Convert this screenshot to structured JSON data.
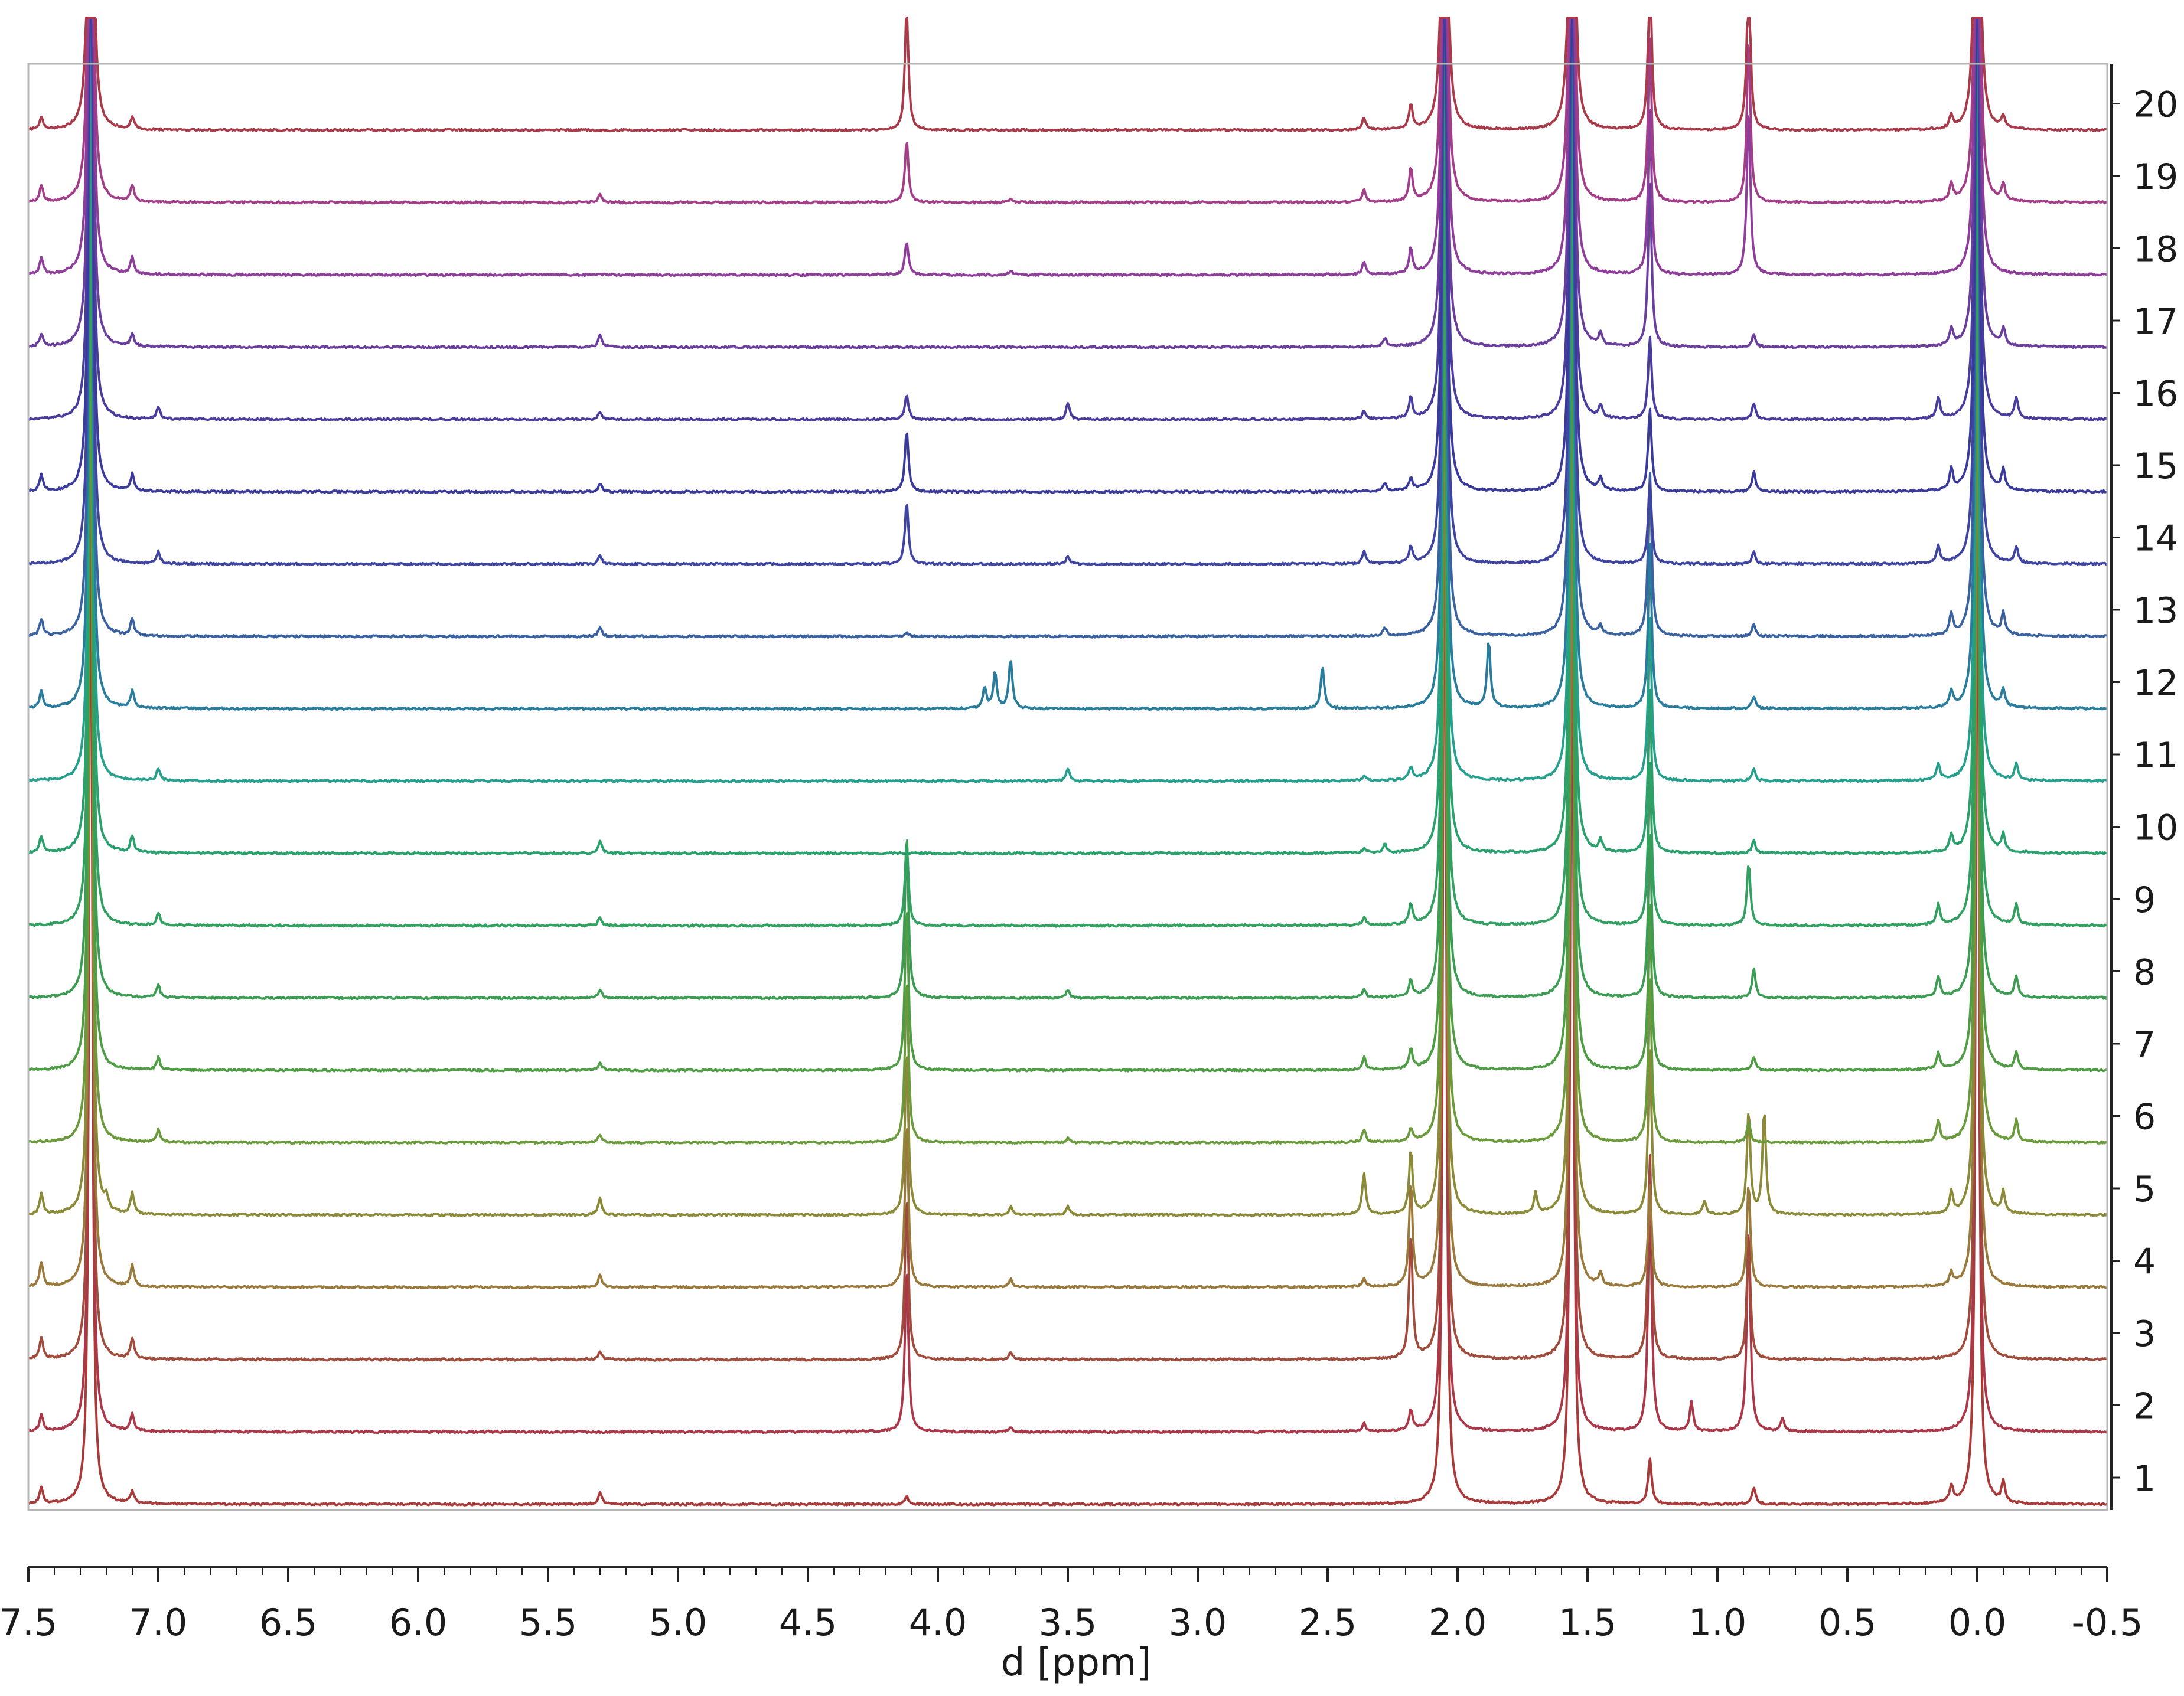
{
  "chart_data": {
    "type": "line",
    "xlabel": "d [ppm]",
    "ylabel": "",
    "title": "",
    "xlim": [
      7.5,
      -0.5
    ],
    "x_reversed": true,
    "x_ticks": [
      7.5,
      7.0,
      6.5,
      6.0,
      5.5,
      5.0,
      4.5,
      4.0,
      3.5,
      3.0,
      2.5,
      2.0,
      1.5,
      1.0,
      0.5,
      0.0,
      -0.5
    ],
    "x_tick_labels": [
      "7.5",
      "7.0",
      "6.5",
      "6.0",
      "5.5",
      "5.0",
      "4.5",
      "4.0",
      "3.5",
      "3.0",
      "2.5",
      "2.0",
      "1.5",
      "1.0",
      "0.5",
      "0.0",
      "-0.5"
    ],
    "right_tick_labels": [
      "1",
      "2",
      "3",
      "4",
      "5",
      "6",
      "7",
      "8",
      "9",
      "10",
      "11",
      "12",
      "13",
      "14",
      "15",
      "16",
      "17",
      "18",
      "19",
      "20"
    ],
    "grid": false,
    "legend": "none",
    "common_peaks": [
      {
        "ppm": 7.26,
        "height": 30
      },
      {
        "ppm": 1.56,
        "height": 30
      },
      {
        "ppm": 0.0,
        "height": 30
      },
      {
        "ppm": 2.05,
        "height": 30
      }
    ],
    "series": [
      {
        "label": "1",
        "color": "#a83a3a",
        "peaks": [
          {
            "ppm": 7.45,
            "h": 0.4
          },
          {
            "ppm": 7.1,
            "h": 0.3
          },
          {
            "ppm": 5.3,
            "h": 0.3
          },
          {
            "ppm": 4.12,
            "h": 0.2
          },
          {
            "ppm": 2.05,
            "h": 0.9
          },
          {
            "ppm": 1.26,
            "h": 1.1
          },
          {
            "ppm": 0.86,
            "h": 0.4
          },
          {
            "ppm": 0.1,
            "h": 0.4
          },
          {
            "ppm": -0.1,
            "h": 0.5
          }
        ]
      },
      {
        "label": "2",
        "color": "#aa3848",
        "peaks": [
          {
            "ppm": 7.45,
            "h": 0.4
          },
          {
            "ppm": 7.1,
            "h": 0.4
          },
          {
            "ppm": 4.12,
            "h": 4.0
          },
          {
            "ppm": 3.72,
            "h": 0.1
          },
          {
            "ppm": 2.36,
            "h": 0.2
          },
          {
            "ppm": 2.18,
            "h": 0.5
          },
          {
            "ppm": 1.26,
            "h": 6.0
          },
          {
            "ppm": 1.1,
            "h": 0.7
          },
          {
            "ppm": 0.88,
            "h": 5.0
          },
          {
            "ppm": 0.75,
            "h": 0.3
          }
        ]
      },
      {
        "label": "3",
        "color": "#a04c3c",
        "peaks": [
          {
            "ppm": 7.45,
            "h": 0.5
          },
          {
            "ppm": 7.1,
            "h": 0.5
          },
          {
            "ppm": 5.3,
            "h": 0.2
          },
          {
            "ppm": 4.12,
            "h": 4.0
          },
          {
            "ppm": 3.72,
            "h": 0.2
          },
          {
            "ppm": 2.18,
            "h": 3.0
          },
          {
            "ppm": 1.26,
            "h": 5.0
          },
          {
            "ppm": 0.88,
            "h": 3.0
          }
        ]
      },
      {
        "label": "4",
        "color": "#9a7a3c",
        "peaks": [
          {
            "ppm": 7.45,
            "h": 0.6
          },
          {
            "ppm": 7.1,
            "h": 0.5
          },
          {
            "ppm": 5.3,
            "h": 0.3
          },
          {
            "ppm": 4.12,
            "h": 4.0
          },
          {
            "ppm": 3.72,
            "h": 0.2
          },
          {
            "ppm": 2.36,
            "h": 0.2
          },
          {
            "ppm": 2.18,
            "h": 2.5
          },
          {
            "ppm": 1.45,
            "h": 0.3
          },
          {
            "ppm": 1.26,
            "h": 2.5
          },
          {
            "ppm": 0.88,
            "h": 2.5
          },
          {
            "ppm": 0.1,
            "h": 0.3
          }
        ]
      },
      {
        "label": "5",
        "color": "#8a8a38",
        "peaks": [
          {
            "ppm": 7.45,
            "h": 0.5
          },
          {
            "ppm": 7.2,
            "h": 0.3
          },
          {
            "ppm": 7.1,
            "h": 0.5
          },
          {
            "ppm": 5.3,
            "h": 0.4
          },
          {
            "ppm": 4.12,
            "h": 4.0
          },
          {
            "ppm": 3.72,
            "h": 0.2
          },
          {
            "ppm": 3.5,
            "h": 0.2
          },
          {
            "ppm": 2.36,
            "h": 1.0
          },
          {
            "ppm": 2.18,
            "h": 1.5
          },
          {
            "ppm": 1.7,
            "h": 0.5
          },
          {
            "ppm": 1.26,
            "h": 4.0
          },
          {
            "ppm": 1.05,
            "h": 0.3
          },
          {
            "ppm": 0.88,
            "h": 2.5
          },
          {
            "ppm": 0.82,
            "h": 2.5
          },
          {
            "ppm": 0.1,
            "h": 0.5
          },
          {
            "ppm": -0.1,
            "h": 0.5
          }
        ]
      },
      {
        "label": "6",
        "color": "#6a9a3c",
        "peaks": [
          {
            "ppm": 7.0,
            "h": 0.3
          },
          {
            "ppm": 5.3,
            "h": 0.2
          },
          {
            "ppm": 4.12,
            "h": 4.0
          },
          {
            "ppm": 3.5,
            "h": 0.1
          },
          {
            "ppm": 2.36,
            "h": 0.3
          },
          {
            "ppm": 2.18,
            "h": 0.3
          },
          {
            "ppm": 1.26,
            "h": 4.0
          },
          {
            "ppm": 0.88,
            "h": 0.5
          },
          {
            "ppm": 0.15,
            "h": 0.5
          },
          {
            "ppm": -0.15,
            "h": 0.5
          }
        ]
      },
      {
        "label": "7",
        "color": "#4e9c44",
        "peaks": [
          {
            "ppm": 7.0,
            "h": 0.3
          },
          {
            "ppm": 5.3,
            "h": 0.2
          },
          {
            "ppm": 4.12,
            "h": 4.0
          },
          {
            "ppm": 2.36,
            "h": 0.3
          },
          {
            "ppm": 2.18,
            "h": 0.5
          },
          {
            "ppm": 1.26,
            "h": 4.0
          },
          {
            "ppm": 0.86,
            "h": 0.3
          },
          {
            "ppm": 0.15,
            "h": 0.4
          },
          {
            "ppm": -0.15,
            "h": 0.4
          }
        ]
      },
      {
        "label": "8",
        "color": "#3c9c54",
        "peaks": [
          {
            "ppm": 7.0,
            "h": 0.3
          },
          {
            "ppm": 5.3,
            "h": 0.2
          },
          {
            "ppm": 4.12,
            "h": 4.0
          },
          {
            "ppm": 3.5,
            "h": 0.2
          },
          {
            "ppm": 2.36,
            "h": 0.2
          },
          {
            "ppm": 2.18,
            "h": 0.4
          },
          {
            "ppm": 1.26,
            "h": 4.0
          },
          {
            "ppm": 0.86,
            "h": 0.7
          },
          {
            "ppm": 0.15,
            "h": 0.5
          },
          {
            "ppm": -0.15,
            "h": 0.5
          }
        ]
      },
      {
        "label": "9",
        "color": "#32a060",
        "peaks": [
          {
            "ppm": 7.0,
            "h": 0.3
          },
          {
            "ppm": 5.3,
            "h": 0.2
          },
          {
            "ppm": 4.12,
            "h": 2.0
          },
          {
            "ppm": 2.36,
            "h": 0.2
          },
          {
            "ppm": 2.18,
            "h": 0.5
          },
          {
            "ppm": 1.26,
            "h": 4.0
          },
          {
            "ppm": 0.88,
            "h": 1.5
          },
          {
            "ppm": 0.15,
            "h": 0.5
          },
          {
            "ppm": -0.15,
            "h": 0.5
          }
        ]
      },
      {
        "label": "10",
        "color": "#2aa06c",
        "peaks": [
          {
            "ppm": 7.45,
            "h": 0.4
          },
          {
            "ppm": 7.1,
            "h": 0.4
          },
          {
            "ppm": 5.3,
            "h": 0.3
          },
          {
            "ppm": 2.36,
            "h": 0.1
          },
          {
            "ppm": 2.28,
            "h": 0.2
          },
          {
            "ppm": 1.45,
            "h": 0.3
          },
          {
            "ppm": 1.26,
            "h": 4.0
          },
          {
            "ppm": 0.86,
            "h": 0.3
          },
          {
            "ppm": 0.1,
            "h": 0.4
          },
          {
            "ppm": -0.1,
            "h": 0.4
          }
        ]
      },
      {
        "label": "11",
        "color": "#26a08c",
        "peaks": [
          {
            "ppm": 7.0,
            "h": 0.3
          },
          {
            "ppm": 3.5,
            "h": 0.3
          },
          {
            "ppm": 2.36,
            "h": 0.1
          },
          {
            "ppm": 2.18,
            "h": 0.3
          },
          {
            "ppm": 1.26,
            "h": 4.0
          },
          {
            "ppm": 0.86,
            "h": 0.3
          },
          {
            "ppm": 0.15,
            "h": 0.4
          },
          {
            "ppm": -0.15,
            "h": 0.4
          }
        ]
      },
      {
        "label": "12",
        "color": "#2a7c9c",
        "peaks": [
          {
            "ppm": 7.45,
            "h": 0.4
          },
          {
            "ppm": 7.1,
            "h": 0.4
          },
          {
            "ppm": 3.82,
            "h": 0.5
          },
          {
            "ppm": 3.78,
            "h": 0.9
          },
          {
            "ppm": 3.72,
            "h": 1.2
          },
          {
            "ppm": 2.52,
            "h": 1.0
          },
          {
            "ppm": 1.88,
            "h": 1.6
          },
          {
            "ppm": 1.26,
            "h": 4.0
          },
          {
            "ppm": 0.86,
            "h": 0.3
          },
          {
            "ppm": 0.1,
            "h": 0.4
          },
          {
            "ppm": -0.1,
            "h": 0.4
          }
        ]
      },
      {
        "label": "13",
        "color": "#3a62a0",
        "peaks": [
          {
            "ppm": 7.45,
            "h": 0.4
          },
          {
            "ppm": 7.1,
            "h": 0.4
          },
          {
            "ppm": 5.3,
            "h": 0.2
          },
          {
            "ppm": 4.12,
            "h": 0.1
          },
          {
            "ppm": 2.28,
            "h": 0.2
          },
          {
            "ppm": 1.45,
            "h": 0.2
          },
          {
            "ppm": 1.26,
            "h": 4.0
          },
          {
            "ppm": 0.86,
            "h": 0.3
          },
          {
            "ppm": 0.1,
            "h": 0.5
          },
          {
            "ppm": -0.1,
            "h": 0.5
          }
        ]
      },
      {
        "label": "14",
        "color": "#3e44a0",
        "peaks": [
          {
            "ppm": 7.0,
            "h": 0.3
          },
          {
            "ppm": 5.3,
            "h": 0.2
          },
          {
            "ppm": 4.12,
            "h": 1.5
          },
          {
            "ppm": 3.5,
            "h": 0.2
          },
          {
            "ppm": 2.36,
            "h": 0.3
          },
          {
            "ppm": 2.18,
            "h": 0.4
          },
          {
            "ppm": 1.26,
            "h": 2.0
          },
          {
            "ppm": 0.86,
            "h": 0.3
          },
          {
            "ppm": 0.15,
            "h": 0.4
          },
          {
            "ppm": -0.15,
            "h": 0.4
          }
        ]
      },
      {
        "label": "15",
        "color": "#3a3a9a",
        "peaks": [
          {
            "ppm": 7.45,
            "h": 0.4
          },
          {
            "ppm": 7.1,
            "h": 0.4
          },
          {
            "ppm": 5.3,
            "h": 0.2
          },
          {
            "ppm": 4.12,
            "h": 1.5
          },
          {
            "ppm": 2.28,
            "h": 0.2
          },
          {
            "ppm": 2.18,
            "h": 0.3
          },
          {
            "ppm": 1.45,
            "h": 0.3
          },
          {
            "ppm": 1.26,
            "h": 2.0
          },
          {
            "ppm": 0.86,
            "h": 0.5
          },
          {
            "ppm": 0.1,
            "h": 0.5
          },
          {
            "ppm": -0.1,
            "h": 0.5
          }
        ]
      },
      {
        "label": "16",
        "color": "#483c9c",
        "peaks": [
          {
            "ppm": 7.0,
            "h": 0.3
          },
          {
            "ppm": 5.3,
            "h": 0.2
          },
          {
            "ppm": 4.12,
            "h": 0.6
          },
          {
            "ppm": 3.5,
            "h": 0.4
          },
          {
            "ppm": 2.36,
            "h": 0.2
          },
          {
            "ppm": 2.18,
            "h": 0.5
          },
          {
            "ppm": 1.45,
            "h": 0.3
          },
          {
            "ppm": 1.26,
            "h": 2.0
          },
          {
            "ppm": 0.86,
            "h": 0.4
          },
          {
            "ppm": 0.15,
            "h": 0.5
          },
          {
            "ppm": -0.15,
            "h": 0.5
          }
        ]
      },
      {
        "label": "17",
        "color": "#6a3e9c",
        "peaks": [
          {
            "ppm": 7.45,
            "h": 0.3
          },
          {
            "ppm": 7.1,
            "h": 0.3
          },
          {
            "ppm": 5.3,
            "h": 0.3
          },
          {
            "ppm": 2.28,
            "h": 0.2
          },
          {
            "ppm": 1.45,
            "h": 0.3
          },
          {
            "ppm": 1.26,
            "h": 4.0
          },
          {
            "ppm": 0.86,
            "h": 0.3
          },
          {
            "ppm": 0.1,
            "h": 0.4
          },
          {
            "ppm": -0.1,
            "h": 0.4
          }
        ]
      },
      {
        "label": "18",
        "color": "#8e3e9a",
        "peaks": [
          {
            "ppm": 7.45,
            "h": 0.4
          },
          {
            "ppm": 7.1,
            "h": 0.4
          },
          {
            "ppm": 4.12,
            "h": 0.8
          },
          {
            "ppm": 3.72,
            "h": 0.1
          },
          {
            "ppm": 2.36,
            "h": 0.3
          },
          {
            "ppm": 2.18,
            "h": 0.6
          },
          {
            "ppm": 1.26,
            "h": 4.0
          },
          {
            "ppm": 0.88,
            "h": 4.0
          }
        ]
      },
      {
        "label": "19",
        "color": "#a23e88",
        "peaks": [
          {
            "ppm": 7.45,
            "h": 0.4
          },
          {
            "ppm": 7.1,
            "h": 0.4
          },
          {
            "ppm": 5.3,
            "h": 0.2
          },
          {
            "ppm": 4.12,
            "h": 1.5
          },
          {
            "ppm": 3.72,
            "h": 0.1
          },
          {
            "ppm": 2.36,
            "h": 0.3
          },
          {
            "ppm": 2.18,
            "h": 0.8
          },
          {
            "ppm": 1.26,
            "h": 4.0
          },
          {
            "ppm": 0.88,
            "h": 4.0
          },
          {
            "ppm": 0.1,
            "h": 0.4
          },
          {
            "ppm": -0.1,
            "h": 0.4
          }
        ]
      },
      {
        "label": "20",
        "color": "#a83a4a",
        "peaks": [
          {
            "ppm": 7.45,
            "h": 0.3
          },
          {
            "ppm": 7.1,
            "h": 0.3
          },
          {
            "ppm": 4.12,
            "h": 3.0
          },
          {
            "ppm": 2.36,
            "h": 0.3
          },
          {
            "ppm": 2.18,
            "h": 0.6
          },
          {
            "ppm": 1.26,
            "h": 4.0
          },
          {
            "ppm": 0.88,
            "h": 4.0
          },
          {
            "ppm": 0.1,
            "h": 0.3
          },
          {
            "ppm": -0.1,
            "h": 0.3
          }
        ]
      }
    ]
  }
}
